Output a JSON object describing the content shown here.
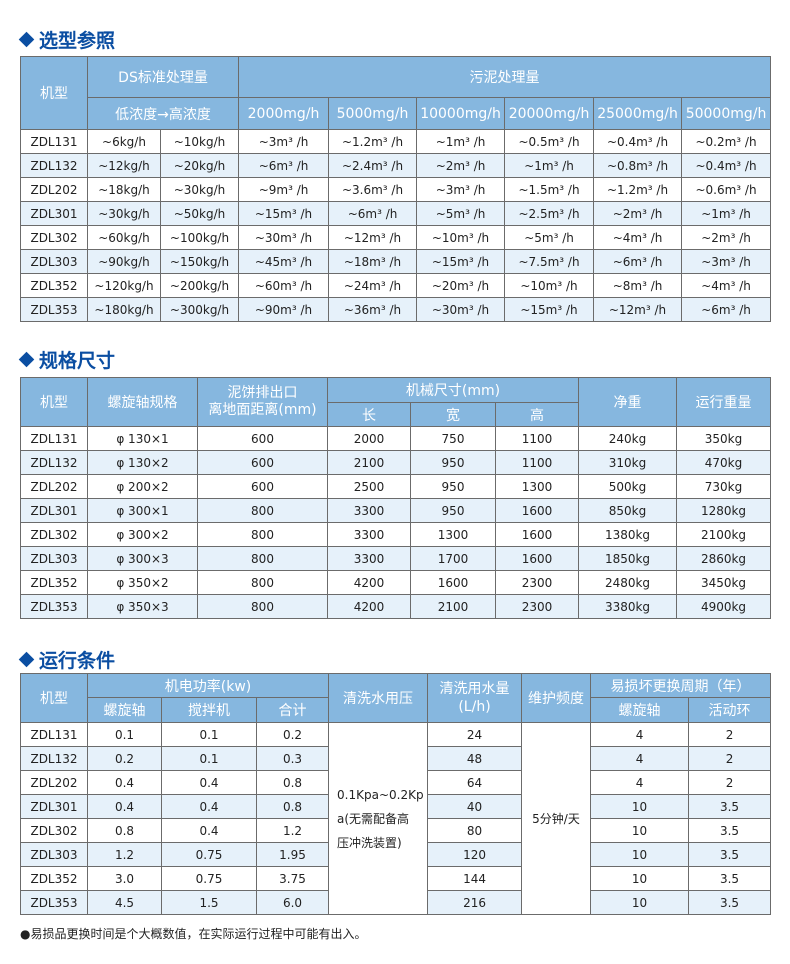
{
  "section1": {
    "title": "选型参照",
    "header": {
      "model": "机型",
      "ds": "DS标准处理量",
      "ds_sub": "低浓度→高浓度",
      "sludge": "污泥处理量",
      "concentrations": [
        "2000mg/h",
        "5000mg/h",
        "10000mg/h",
        "20000mg/h",
        "25000mg/h",
        "50000mg/h"
      ]
    },
    "rows": [
      [
        "ZDL131",
        "~6kg/h",
        "~10kg/h",
        "~3m³ /h",
        "~1.2m³ /h",
        "~1m³ /h",
        "~0.5m³ /h",
        "~0.4m³ /h",
        "~0.2m³ /h"
      ],
      [
        "ZDL132",
        "~12kg/h",
        "~20kg/h",
        "~6m³ /h",
        "~2.4m³ /h",
        "~2m³ /h",
        "~1m³ /h",
        "~0.8m³ /h",
        "~0.4m³ /h"
      ],
      [
        "ZDL202",
        "~18kg/h",
        "~30kg/h",
        "~9m³ /h",
        "~3.6m³ /h",
        "~3m³ /h",
        "~1.5m³ /h",
        "~1.2m³ /h",
        "~0.6m³ /h"
      ],
      [
        "ZDL301",
        "~30kg/h",
        "~50kg/h",
        "~15m³ /h",
        "~6m³ /h",
        "~5m³ /h",
        "~2.5m³ /h",
        "~2m³ /h",
        "~1m³ /h"
      ],
      [
        "ZDL302",
        "~60kg/h",
        "~100kg/h",
        "~30m³ /h",
        "~12m³ /h",
        "~10m³ /h",
        "~5m³ /h",
        "~4m³ /h",
        "~2m³ /h"
      ],
      [
        "ZDL303",
        "~90kg/h",
        "~150kg/h",
        "~45m³ /h",
        "~18m³ /h",
        "~15m³ /h",
        "~7.5m³ /h",
        "~6m³ /h",
        "~3m³ /h"
      ],
      [
        "ZDL352",
        "~120kg/h",
        "~200kg/h",
        "~60m³ /h",
        "~24m³ /h",
        "~20m³ /h",
        "~10m³ /h",
        "~8m³ /h",
        "~4m³ /h"
      ],
      [
        "ZDL353",
        "~180kg/h",
        "~300kg/h",
        "~90m³ /h",
        "~36m³ /h",
        "~30m³ /h",
        "~15m³ /h",
        "~12m³ /h",
        "~6m³ /h"
      ]
    ]
  },
  "section2": {
    "title": "规格尺寸",
    "header": {
      "model": "机型",
      "screw": "螺旋轴规格",
      "outlet_1": "泥饼排出口",
      "outlet_2": "离地面距离(mm)",
      "dims": "机械尺寸(mm)",
      "length": "长",
      "width": "宽",
      "height": "高",
      "net_weight": "净重",
      "run_weight": "运行重量"
    },
    "rows": [
      [
        "ZDL131",
        "φ 130×1",
        "600",
        "2000",
        "750",
        "1100",
        "240kg",
        "350kg"
      ],
      [
        "ZDL132",
        "φ 130×2",
        "600",
        "2100",
        "950",
        "1100",
        "310kg",
        "470kg"
      ],
      [
        "ZDL202",
        "φ 200×2",
        "600",
        "2500",
        "950",
        "1300",
        "500kg",
        "730kg"
      ],
      [
        "ZDL301",
        "φ 300×1",
        "800",
        "3300",
        "950",
        "1600",
        "850kg",
        "1280kg"
      ],
      [
        "ZDL302",
        "φ 300×2",
        "800",
        "3300",
        "1300",
        "1600",
        "1380kg",
        "2100kg"
      ],
      [
        "ZDL303",
        "φ 300×3",
        "800",
        "3300",
        "1700",
        "1600",
        "1850kg",
        "2860kg"
      ],
      [
        "ZDL352",
        "φ 350×2",
        "800",
        "4200",
        "1600",
        "2300",
        "2480kg",
        "3450kg"
      ],
      [
        "ZDL353",
        "φ 350×3",
        "800",
        "4200",
        "2100",
        "2300",
        "3380kg",
        "4900kg"
      ]
    ]
  },
  "section3": {
    "title": "运行条件",
    "header": {
      "model": "机型",
      "power": "机电功率(kw)",
      "screw": "螺旋轴",
      "mixer": "搅拌机",
      "total": "合计",
      "pressure": "清洗水用压",
      "water_1": "清洗用水量",
      "water_2": "(L/h)",
      "maintenance": "维护频度",
      "wear": "易损坏更换周期（年）",
      "wear_screw": "螺旋轴",
      "wear_ring": "活动环"
    },
    "pressure_lines": [
      "0.1Kpa~0.2Kp",
      "a(无需配备高",
      "压冲洗装置)"
    ],
    "maintenance_value": "5分钟/天",
    "rows": [
      [
        "ZDL131",
        "0.1",
        "0.1",
        "0.2",
        "24",
        "4",
        "2"
      ],
      [
        "ZDL132",
        "0.2",
        "0.1",
        "0.3",
        "48",
        "4",
        "2"
      ],
      [
        "ZDL202",
        "0.4",
        "0.4",
        "0.8",
        "64",
        "4",
        "2"
      ],
      [
        "ZDL301",
        "0.4",
        "0.4",
        "0.8",
        "40",
        "10",
        "3.5"
      ],
      [
        "ZDL302",
        "0.8",
        "0.4",
        "1.2",
        "80",
        "10",
        "3.5"
      ],
      [
        "ZDL303",
        "1.2",
        "0.75",
        "1.95",
        "120",
        "10",
        "3.5"
      ],
      [
        "ZDL352",
        "3.0",
        "0.75",
        "3.75",
        "144",
        "10",
        "3.5"
      ],
      [
        "ZDL353",
        "4.5",
        "1.5",
        "6.0",
        "216",
        "10",
        "3.5"
      ]
    ]
  },
  "footnote": "●易损品更换时间是个大概数值，在实际运行过程中可能有出入。",
  "colors": {
    "title": "#0b4ea2",
    "header_bg": "#86b7df",
    "alt_row": "#e6f1fa"
  }
}
